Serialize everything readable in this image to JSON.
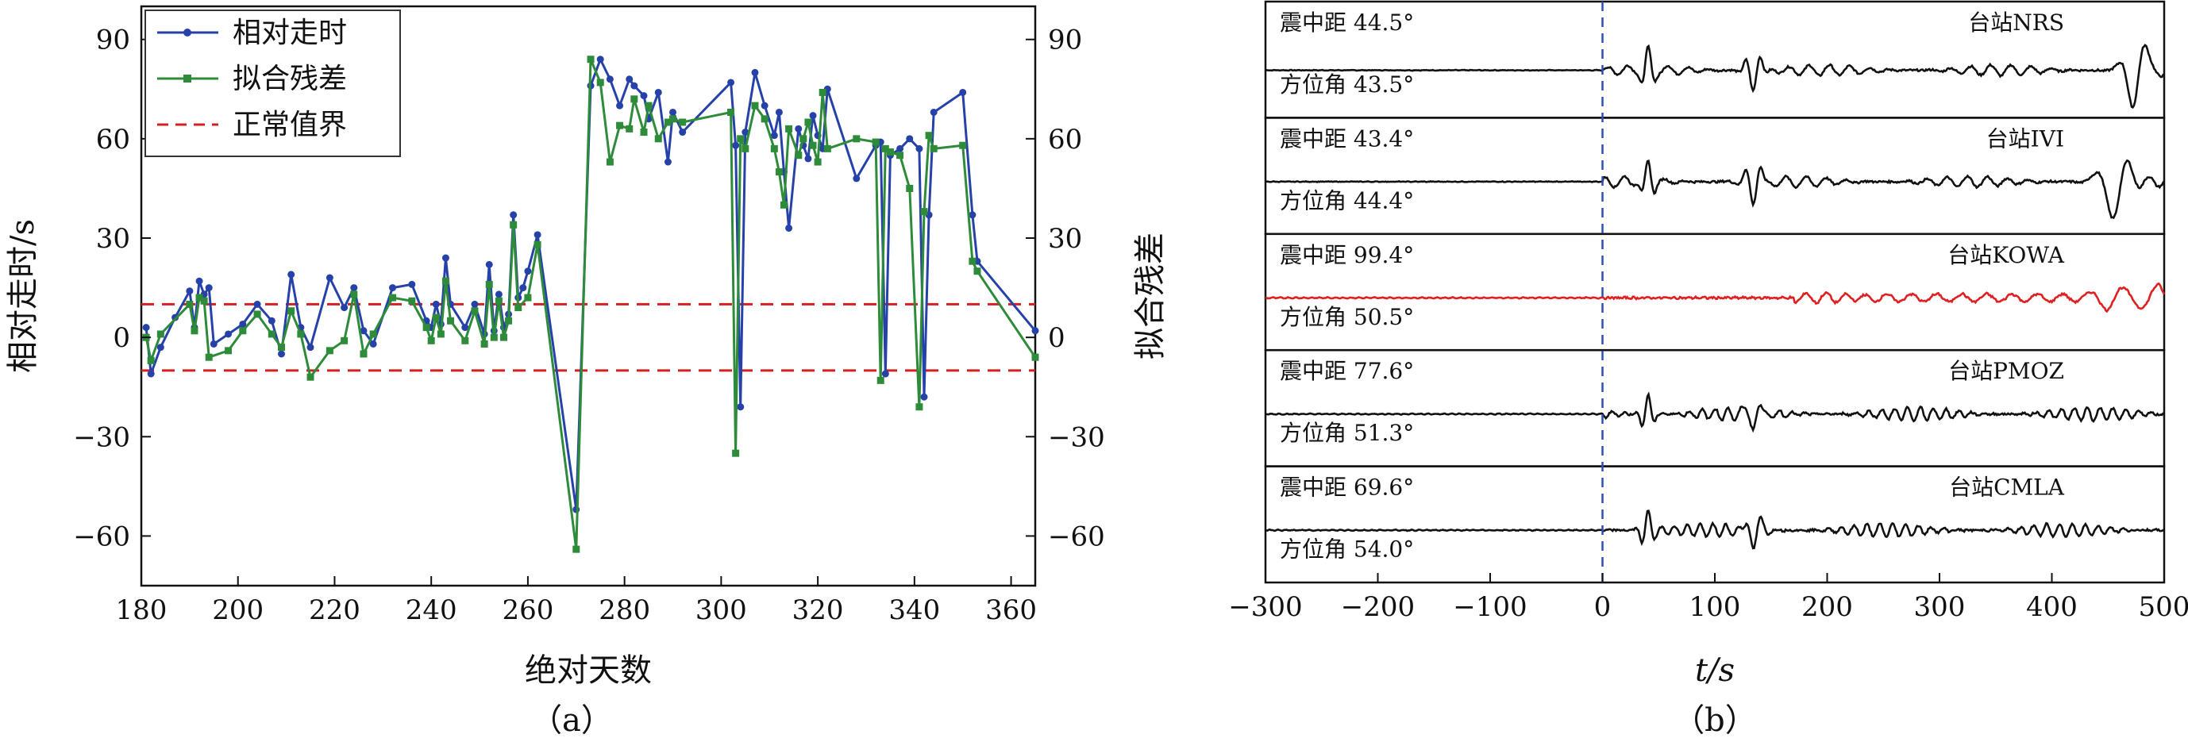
{
  "chart_data": [
    {
      "type": "line",
      "panel_label": "（a）",
      "xlabel": "绝对天数",
      "ylabel": "相对走时/s",
      "y2label": "拟合残差",
      "xlim": [
        180,
        365
      ],
      "ylim": [
        -75,
        100
      ],
      "xticks": [
        "180",
        "200",
        "220",
        "240",
        "260",
        "280",
        "300",
        "320",
        "340",
        "360"
      ],
      "yticks": [
        "90",
        "60",
        "30",
        "0",
        "−30",
        "−60"
      ],
      "y2ticks": [
        "90",
        "60",
        "30",
        "0",
        "−30",
        "−60"
      ],
      "legend_position": "top-left",
      "colors": {
        "series1": "#2642a8",
        "series2": "#2e8b3a",
        "threshold": "#d42020"
      },
      "series": [
        {
          "name": "相对走时",
          "marker": "circle",
          "x": [
            181,
            182,
            184,
            187,
            190,
            191,
            192,
            193,
            194,
            195,
            198,
            201,
            204,
            207,
            209,
            211,
            213,
            215,
            219,
            222,
            224,
            226,
            228,
            232,
            236,
            239,
            240,
            241,
            242,
            243,
            244,
            247,
            249,
            251,
            252,
            253,
            254,
            255,
            256,
            257,
            258,
            259,
            260,
            262,
            270,
            273,
            275,
            277,
            279,
            281,
            282,
            284,
            285,
            287,
            289,
            290,
            292,
            302,
            303,
            304,
            305,
            307,
            309,
            311,
            312,
            313,
            314,
            316,
            317,
            318,
            319,
            320,
            321,
            322,
            328,
            332,
            333,
            334,
            335,
            337,
            339,
            341,
            342,
            343,
            344,
            350,
            352,
            353,
            365
          ],
          "y": [
            3,
            -11,
            -3,
            6,
            14,
            3,
            17,
            13,
            15,
            -2,
            1,
            4,
            10,
            5,
            -5,
            19,
            3,
            -3,
            18,
            9,
            15,
            2,
            -2,
            15,
            16,
            5,
            3,
            10,
            4,
            24,
            10,
            3,
            10,
            1,
            22,
            2,
            13,
            3,
            7,
            37,
            12,
            15,
            20,
            31,
            -52,
            76,
            84,
            78,
            70,
            78,
            76,
            73,
            66,
            74,
            53,
            68,
            62,
            77,
            58,
            -21,
            62,
            80,
            70,
            61,
            68,
            50,
            33,
            63,
            58,
            54,
            67,
            61,
            57,
            75,
            48,
            58,
            59,
            -11,
            55,
            57,
            60,
            57,
            -18,
            37,
            68,
            74,
            37,
            23,
            2
          ]
        },
        {
          "name": "拟合残差",
          "marker": "square",
          "x": [
            181,
            182,
            184,
            190,
            191,
            192,
            193,
            194,
            198,
            201,
            204,
            207,
            209,
            211,
            213,
            215,
            219,
            222,
            224,
            226,
            228,
            232,
            236,
            239,
            240,
            241,
            242,
            243,
            244,
            247,
            249,
            251,
            252,
            253,
            254,
            255,
            256,
            257,
            258,
            260,
            262,
            270,
            273,
            275,
            277,
            279,
            281,
            282,
            284,
            285,
            287,
            289,
            290,
            292,
            302,
            303,
            304,
            305,
            307,
            309,
            311,
            312,
            313,
            314,
            316,
            317,
            318,
            319,
            320,
            321,
            322,
            328,
            332,
            333,
            334,
            335,
            337,
            339,
            341,
            342,
            343,
            344,
            350,
            352,
            353,
            365
          ],
          "y": [
            0,
            -7,
            1,
            10,
            2,
            12,
            11,
            -6,
            -4,
            2,
            7,
            1,
            -3,
            8,
            1,
            -12,
            -4,
            -1,
            13,
            -5,
            1,
            12,
            11,
            3,
            -1,
            6,
            1,
            17,
            5,
            -1,
            8,
            -2,
            16,
            0,
            11,
            0,
            5,
            34,
            9,
            12,
            28,
            -64,
            84,
            77,
            53,
            64,
            63,
            72,
            62,
            70,
            60,
            65,
            66,
            65,
            68,
            -35,
            60,
            57,
            70,
            66,
            57,
            50,
            40,
            63,
            55,
            60,
            65,
            58,
            53,
            74,
            57,
            60,
            59,
            -13,
            57,
            56,
            55,
            45,
            -21,
            38,
            61,
            57,
            58,
            23,
            20,
            -6
          ]
        },
        {
          "name": "正常值界",
          "style": "dashed",
          "y_values": [
            10,
            -10
          ]
        }
      ]
    },
    {
      "type": "line",
      "panel_label": "（b）",
      "xlabel": "t/s",
      "xlim": [
        -300,
        500
      ],
      "xticks": [
        "−300",
        "−200",
        "−100",
        "0",
        "100",
        "200",
        "300",
        "400",
        "500"
      ],
      "reference_line_x": 0,
      "colors": {
        "trace": "#111111",
        "highlight": "#e02020",
        "reference": "#2c50b0"
      },
      "traces": [
        {
          "station": "台站NRS",
          "distance": "震中距 44.5°",
          "azimuth": "方位角 43.5°",
          "color": "#111111"
        },
        {
          "station": "台站IVI",
          "distance": "震中距 43.4°",
          "azimuth": "方位角 44.4°",
          "color": "#111111"
        },
        {
          "station": "台站KOWA",
          "distance": "震中距 99.4°",
          "azimuth": "方位角 50.5°",
          "color": "#e02020"
        },
        {
          "station": "台站PMOZ",
          "distance": "震中距 77.6°",
          "azimuth": "方位角 51.3°",
          "color": "#111111"
        },
        {
          "station": "台站CMLA",
          "distance": "震中距 69.6°",
          "azimuth": "方位角 54.0°",
          "color": "#111111"
        }
      ]
    }
  ]
}
